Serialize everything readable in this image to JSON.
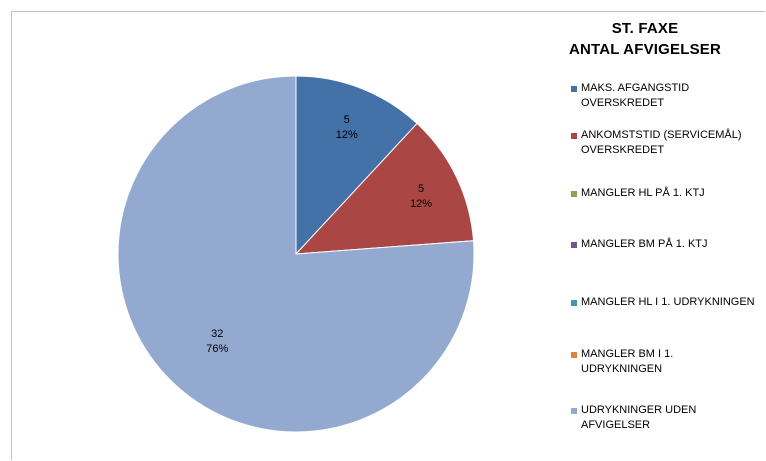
{
  "chart_data": {
    "type": "pie",
    "title_lines": [
      "ST. FAXE",
      "ANTAL AFVIGELSER"
    ],
    "slices": [
      {
        "name": "MAKS. AFGANGSTID\nOVERSKREDET",
        "value": 5,
        "value_label": "5",
        "percent_label": "12%",
        "color": "#4472a8"
      },
      {
        "name": "ANKOMSTSTID (SERVICEMÅL)\nOVERSKREDET",
        "value": 5,
        "value_label": "5",
        "percent_label": "12%",
        "color": "#aa4643"
      },
      {
        "name": "MANGLER HL PÅ 1. KTJ",
        "value": 0,
        "value_label": "",
        "percent_label": "",
        "color": "#89a54e"
      },
      {
        "name": "MANGLER BM PÅ 1. KTJ",
        "value": 0,
        "value_label": "",
        "percent_label": "",
        "color": "#71588f"
      },
      {
        "name": "MANGLER HL I 1. UDRYKNINGEN",
        "value": 0,
        "value_label": "",
        "percent_label": "",
        "color": "#4198af"
      },
      {
        "name": "MANGLER BM I 1.\nUDRYKNINGEN",
        "value": 0,
        "value_label": "",
        "percent_label": "",
        "color": "#db843d"
      },
      {
        "name": "UDRYKNINGER UDEN\nAFVIGELSER",
        "value": 32,
        "value_label": "32",
        "percent_label": "76%",
        "color": "#93a9cf"
      }
    ],
    "legend_position": "right"
  }
}
